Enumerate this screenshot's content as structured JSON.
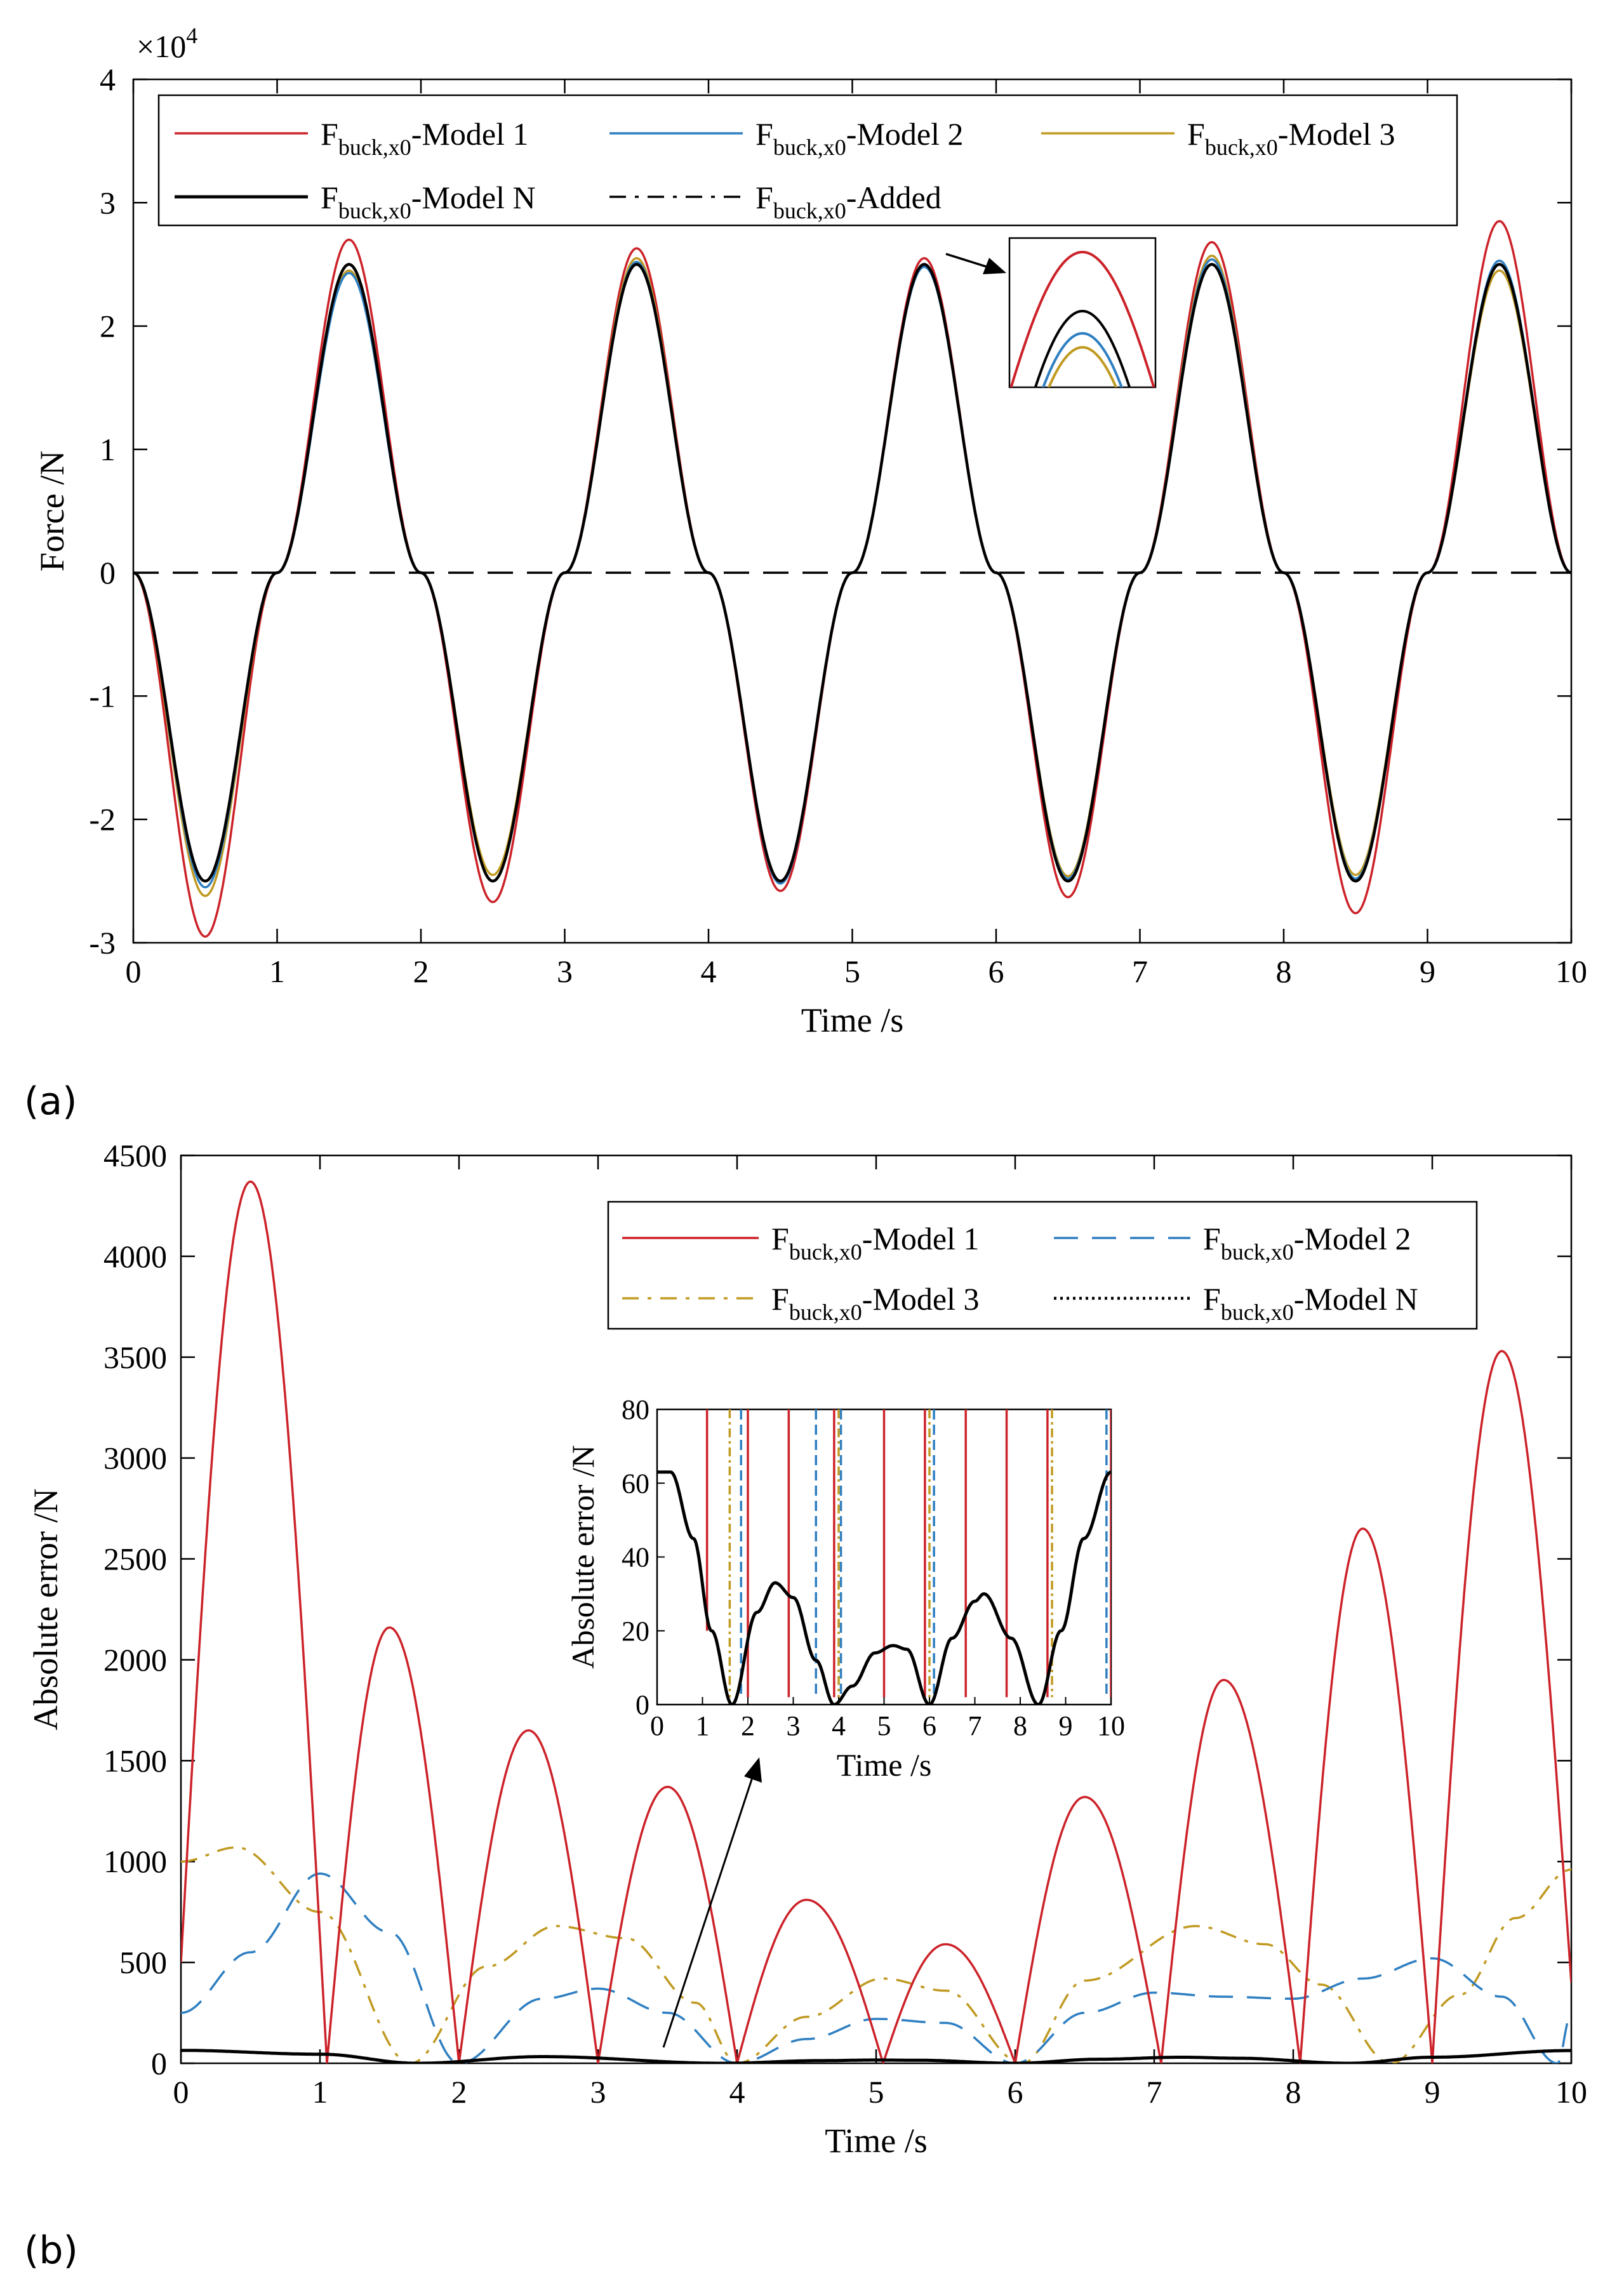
{
  "panels": {
    "a": "(a)",
    "b": "(b)"
  },
  "colors": {
    "model1": "#cc2229",
    "model2": "#2f7fc1",
    "model3": "#c09a22",
    "modelN": "#000000",
    "added": "#000000"
  },
  "chart_data": [
    {
      "type": "line",
      "panel": "(a)",
      "xlabel": "Time /s",
      "ylabel": "Force /N",
      "xlim": [
        0,
        10
      ],
      "ylim": [
        -3,
        4
      ],
      "exponent_label": "×10",
      "exponent_power": "4",
      "y_scale": 10000,
      "xticks": [
        "0",
        "1",
        "2",
        "3",
        "4",
        "5",
        "6",
        "7",
        "8",
        "9",
        "10"
      ],
      "yticks": [
        "-3",
        "-2",
        "-1",
        "0",
        "1",
        "2",
        "3",
        "4"
      ],
      "legend_position": "top",
      "series": [
        {
          "key": "model1",
          "name": "F",
          "sub": "buck,x0",
          "suffix": "-Model 1",
          "style": "solid",
          "color": "#cc2229",
          "x": [
            0,
            0.5,
            1,
            1.5,
            2,
            2.5,
            3,
            3.5,
            4,
            4.5,
            5,
            5.5,
            6,
            6.5,
            7,
            7.5,
            8,
            8.5,
            9,
            9.5,
            10
          ],
          "peaks_x1e4": [
            0,
            -2.95,
            0,
            2.7,
            0,
            -2.67,
            0,
            2.63,
            0,
            -2.58,
            0,
            2.55,
            0,
            -2.63,
            0,
            2.68,
            0,
            -2.76,
            0,
            2.85,
            0
          ]
        },
        {
          "key": "model2",
          "name": "F",
          "sub": "buck,x0",
          "suffix": "-Model 2",
          "style": "solid",
          "color": "#2f7fc1",
          "x": [
            0,
            0.5,
            1,
            1.5,
            2,
            2.5,
            3,
            3.5,
            4,
            4.5,
            5,
            5.5,
            6,
            6.5,
            7,
            7.5,
            8,
            8.5,
            9,
            9.5,
            10
          ],
          "peaks_x1e4": [
            0,
            -2.55,
            0,
            2.43,
            0,
            -2.5,
            0,
            2.52,
            0,
            -2.52,
            0,
            2.48,
            0,
            -2.48,
            0,
            2.54,
            0,
            -2.48,
            0,
            2.53,
            0
          ]
        },
        {
          "key": "model3",
          "name": "F",
          "sub": "buck,x0",
          "suffix": "-Model 3",
          "style": "solid",
          "color": "#c09a22",
          "x": [
            0,
            0.5,
            1,
            1.5,
            2,
            2.5,
            3,
            3.5,
            4,
            4.5,
            5,
            5.5,
            6,
            6.5,
            7,
            7.5,
            8,
            8.5,
            9,
            9.5,
            10
          ],
          "peaks_x1e4": [
            0,
            -2.62,
            0,
            2.45,
            0,
            -2.45,
            0,
            2.55,
            0,
            -2.5,
            0,
            2.5,
            0,
            -2.46,
            0,
            2.57,
            0,
            -2.45,
            0,
            2.45,
            0
          ]
        },
        {
          "key": "modelN",
          "name": "F",
          "sub": "buck,x0",
          "suffix": "-Model N",
          "style": "solid",
          "color": "#000000",
          "x": [
            0,
            0.5,
            1,
            1.5,
            2,
            2.5,
            3,
            3.5,
            4,
            4.5,
            5,
            5.5,
            6,
            6.5,
            7,
            7.5,
            8,
            8.5,
            9,
            9.5,
            10
          ],
          "peaks_x1e4": [
            0,
            -2.5,
            0,
            2.5,
            0,
            -2.5,
            0,
            2.5,
            0,
            -2.5,
            0,
            2.5,
            0,
            -2.5,
            0,
            2.5,
            0,
            -2.5,
            0,
            2.5,
            0
          ]
        },
        {
          "key": "added",
          "name": "F",
          "sub": "buck,x0",
          "suffix": "-Added",
          "style": "dashdot",
          "color": "#000000",
          "x": [
            0,
            10
          ],
          "peaks_x1e4": [
            0,
            0
          ]
        }
      ]
    },
    {
      "type": "line",
      "panel": "(b)",
      "xlabel": "Time /s",
      "ylabel": "Absolute error /N",
      "xlim": [
        0,
        10
      ],
      "ylim": [
        0,
        4500
      ],
      "xticks": [
        "0",
        "1",
        "2",
        "3",
        "4",
        "5",
        "6",
        "7",
        "8",
        "9",
        "10"
      ],
      "yticks": [
        "0",
        "500",
        "1000",
        "1500",
        "2000",
        "2500",
        "3000",
        "3500",
        "4000",
        "4500"
      ],
      "legend_position": "top-right",
      "series": [
        {
          "key": "model1",
          "name": "F",
          "sub": "buck,x0",
          "suffix": "-Model 1",
          "style": "solid",
          "color": "#cc2229",
          "x": [
            0,
            0.5,
            1.05,
            1.5,
            2.0,
            2.5,
            3.0,
            3.5,
            4.0,
            4.5,
            5.05,
            5.5,
            6.0,
            6.5,
            7.05,
            7.5,
            8.05,
            8.5,
            9.0,
            9.5,
            10
          ],
          "y": [
            500,
            4370,
            0,
            2160,
            0,
            1650,
            0,
            1370,
            0,
            810,
            0,
            590,
            0,
            1320,
            0,
            1900,
            0,
            2650,
            0,
            3530,
            400
          ]
        },
        {
          "key": "model2",
          "name": "F",
          "sub": "buck,x0",
          "suffix": "-Model 2",
          "style": "dashed",
          "color": "#2f7fc1",
          "x": [
            0,
            0.5,
            1.0,
            1.5,
            2.0,
            2.6,
            3.0,
            3.5,
            4.0,
            4.5,
            5.0,
            5.5,
            6.0,
            6.5,
            7.0,
            7.5,
            8.0,
            8.5,
            9.0,
            9.5,
            9.9,
            10
          ],
          "y": [
            250,
            550,
            940,
            650,
            0,
            320,
            370,
            250,
            0,
            120,
            220,
            200,
            0,
            250,
            350,
            330,
            320,
            420,
            520,
            330,
            0,
            250
          ]
        },
        {
          "key": "model3",
          "name": "F",
          "sub": "buck,x0",
          "suffix": "-Model 3",
          "style": "dashdot",
          "color": "#c09a22",
          "x": [
            0,
            0.4,
            1.0,
            1.65,
            2.2,
            2.7,
            3.2,
            3.7,
            4.0,
            4.5,
            5.05,
            5.5,
            6.05,
            6.5,
            7.3,
            7.8,
            8.2,
            8.7,
            9.2,
            9.6,
            10
          ],
          "y": [
            1000,
            1070,
            750,
            0,
            480,
            680,
            620,
            300,
            0,
            230,
            420,
            360,
            0,
            410,
            680,
            590,
            390,
            0,
            340,
            720,
            960
          ]
        },
        {
          "key": "modelN",
          "name": "F",
          "sub": "buck,x0",
          "suffix": "-Model N",
          "style": "dotted",
          "color": "#000000",
          "x": [
            0,
            1.0,
            1.7,
            2.6,
            3.9,
            4.6,
            5.0,
            5.3,
            6.0,
            6.6,
            7.2,
            7.6,
            8.4,
            9.0,
            10
          ],
          "y": [
            64,
            45,
            0,
            33,
            0,
            13,
            16,
            15,
            0,
            20,
            30,
            25,
            0,
            30,
            63
          ]
        }
      ],
      "inset": {
        "xlabel": "Time /s",
        "ylabel": "Absolute error /N",
        "xlim": [
          0,
          10
        ],
        "ylim": [
          0,
          80
        ],
        "xticks": [
          "0",
          "1",
          "2",
          "3",
          "4",
          "5",
          "6",
          "7",
          "8",
          "9",
          "10"
        ],
        "yticks": [
          "0",
          "20",
          "40",
          "60",
          "80"
        ],
        "modelN_x": [
          0,
          0.3,
          0.8,
          1.2,
          1.65,
          2.2,
          2.6,
          3.0,
          3.5,
          3.9,
          4.3,
          4.8,
          5.2,
          5.5,
          6.0,
          6.5,
          7.0,
          7.2,
          7.8,
          8.4,
          8.9,
          9.4,
          10
        ],
        "modelN_y": [
          63,
          63,
          45,
          20,
          0,
          25,
          33,
          29,
          12,
          0,
          5,
          14,
          16,
          15,
          0,
          18,
          28,
          30,
          18,
          0,
          20,
          45,
          63
        ],
        "spikes_model1": [
          1.1,
          2.0,
          2.9,
          3.9,
          5.0,
          5.9,
          6.8,
          7.7,
          8.6,
          10
        ],
        "spikes_model2": [
          1.85,
          3.5,
          4.05,
          6.1,
          9.9
        ],
        "spikes_model3": [
          1.6,
          4.0,
          6.0,
          8.7
        ]
      }
    }
  ]
}
